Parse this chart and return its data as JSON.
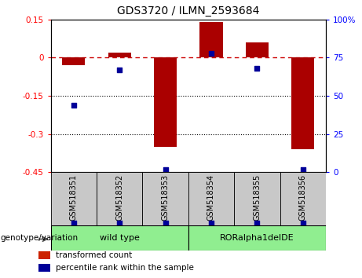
{
  "title": "GDS3720 / ILMN_2593684",
  "samples": [
    "GSM518351",
    "GSM518352",
    "GSM518353",
    "GSM518354",
    "GSM518355",
    "GSM518356"
  ],
  "transformed_counts": [
    -0.03,
    0.02,
    -0.35,
    0.14,
    0.06,
    -0.36
  ],
  "percentile_ranks": [
    44,
    67,
    2,
    78,
    68,
    2
  ],
  "ylim_left": [
    -0.45,
    0.15
  ],
  "ylim_right": [
    0,
    100
  ],
  "yticks_left": [
    0.15,
    0.0,
    -0.15,
    -0.3,
    -0.45
  ],
  "yticks_left_labels": [
    "0.15",
    "0",
    "-0.15",
    "-0.3",
    "-0.45"
  ],
  "yticks_right": [
    100,
    75,
    50,
    25,
    0
  ],
  "yticks_right_labels": [
    "100%",
    "75",
    "50",
    "25",
    "0"
  ],
  "dotted_lines": [
    -0.15,
    -0.3
  ],
  "group_defs": [
    {
      "label": "wild type",
      "start": 0,
      "end": 3,
      "color": "#90EE90"
    },
    {
      "label": "RORalpha1delDE",
      "start": 3,
      "end": 6,
      "color": "#90EE90"
    }
  ],
  "sample_bg_color": "#C8C8C8",
  "bar_color": "#AA0000",
  "dot_color": "#000099",
  "dashed_line_color": "#CC0000",
  "bar_width": 0.5,
  "genotype_label": "genotype/variation",
  "legend_items": [
    {
      "color": "#CC2200",
      "label": "transformed count"
    },
    {
      "color": "#000099",
      "label": "percentile rank within the sample"
    }
  ]
}
